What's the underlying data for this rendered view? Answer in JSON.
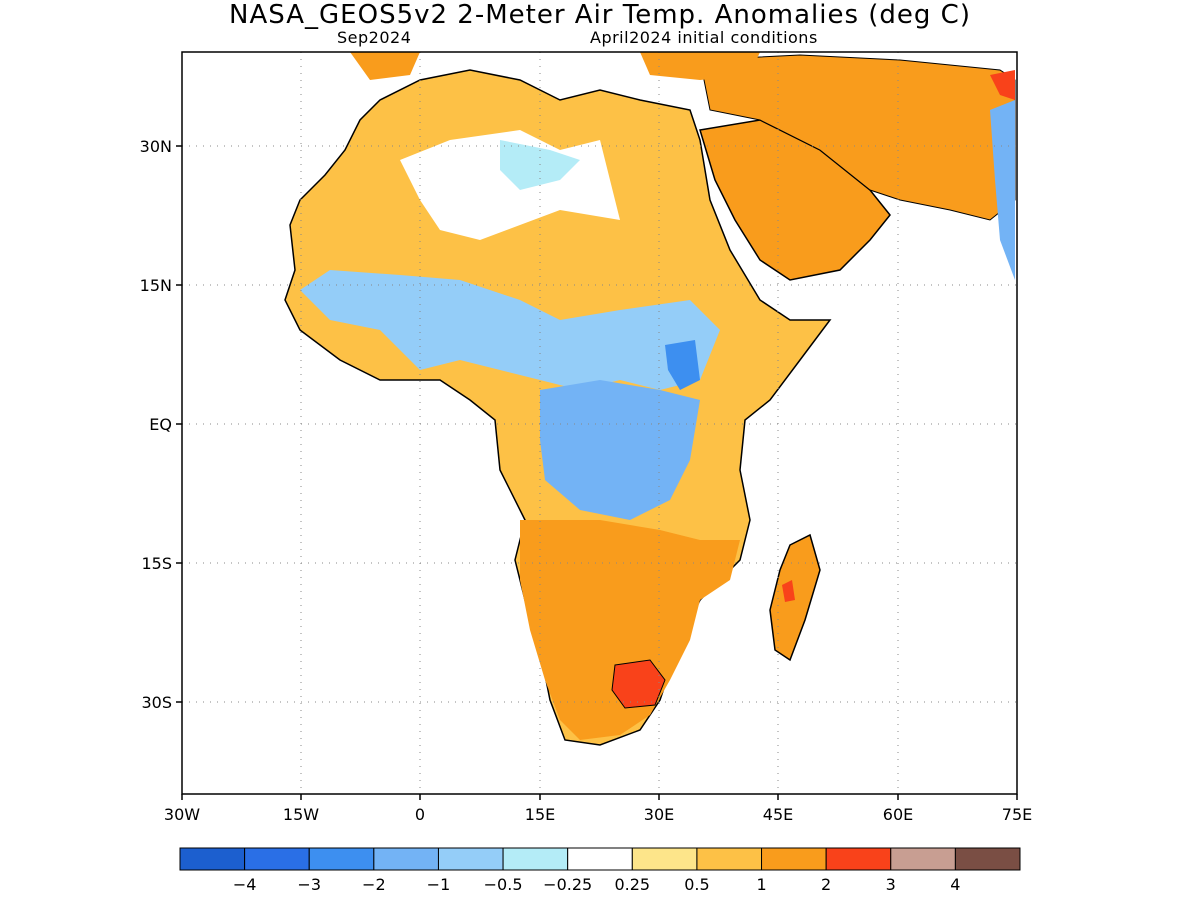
{
  "title": "NASA_GEOS5v2 2-Meter Air Temp. Anomalies (deg C)",
  "subtitle_left": "Sep2024",
  "subtitle_right": "April2024 initial conditions",
  "lat_labels": [
    "30N",
    "15N",
    "EQ",
    "15S",
    "30S"
  ],
  "lon_labels": [
    "30W",
    "15W",
    "0",
    "15E",
    "30E",
    "45E",
    "60E",
    "75E"
  ],
  "colorbar": {
    "colors": [
      "#1c5fcf",
      "#2a6fe6",
      "#3d8ff0",
      "#73b3f5",
      "#94cdf8",
      "#b4ecf7",
      "#ffffff",
      "#fde58a",
      "#fdc146",
      "#f99c1c",
      "#f9421a",
      "#c89e92",
      "#7a4e44"
    ],
    "labels": [
      "-4",
      "-3",
      "-2",
      "-1",
      "-0.5",
      "-0.25",
      "0.25",
      "0.5",
      "1",
      "2",
      "3",
      "4"
    ]
  },
  "colors": {
    "land_anomaly_warm": "#f99c1c",
    "land_anomaly_mild": "#fdc146",
    "land_anomaly_cool": "#73b3f5",
    "coastline": "#000000",
    "grid": "#888888"
  }
}
